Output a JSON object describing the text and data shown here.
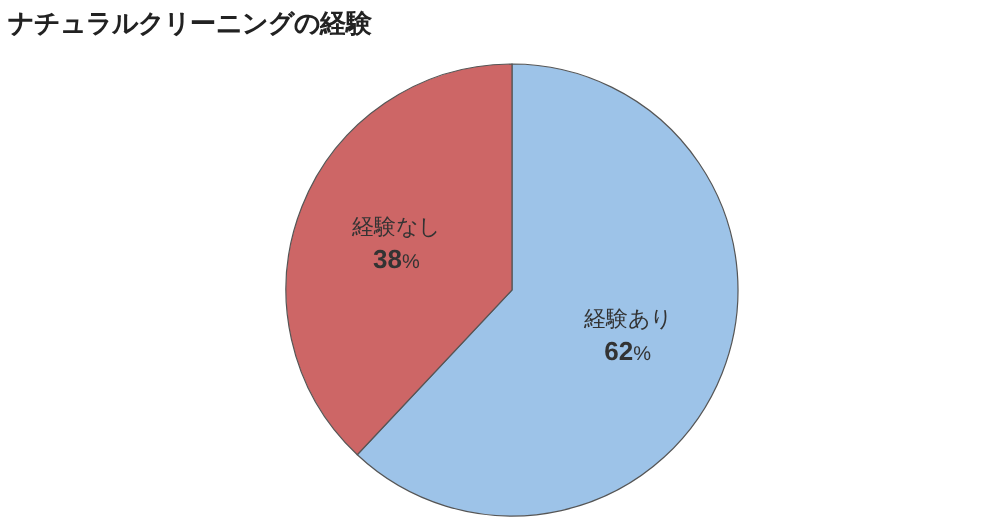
{
  "chart_data": {
    "type": "pie",
    "title": "ナチュラルクリーニングの経験",
    "categories": [
      "経験あり",
      "経験なし"
    ],
    "values": [
      62,
      38
    ],
    "colors": [
      "#9dc3e8",
      "#cd6666"
    ],
    "value_labels": [
      "62%",
      "38%"
    ]
  }
}
